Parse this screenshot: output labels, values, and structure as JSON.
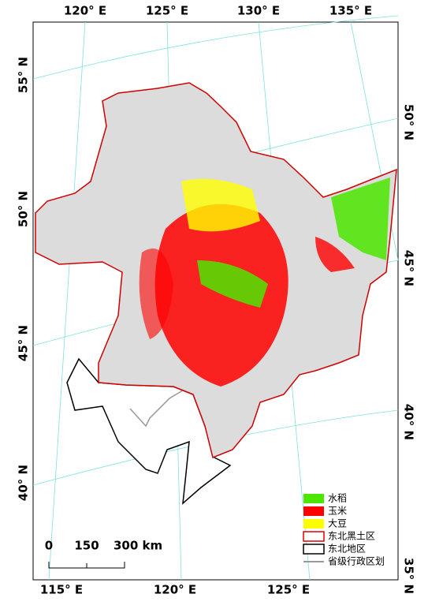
{
  "top_labels": [
    "120° E",
    "125° E",
    "130° E",
    "135° E"
  ],
  "bottom_labels": [
    "115° E",
    "120° E",
    "125° E"
  ],
  "left_labels": [
    "55° N",
    "50° N",
    "45° N",
    "40° N"
  ],
  "right_labels": [
    "50° N",
    "45° N",
    "40° N",
    "35° N"
  ],
  "legend": {
    "items": [
      {
        "label": "水稻",
        "color": "#4ce600",
        "kind": "fill"
      },
      {
        "label": "玉米",
        "color": "#ff0000",
        "kind": "fill"
      },
      {
        "label": "大豆",
        "color": "#ffff00",
        "kind": "fill"
      },
      {
        "label": "东北黑土区",
        "color": "#e00000",
        "kind": "outline"
      },
      {
        "label": "东北地区",
        "color": "#000000",
        "kind": "outline"
      },
      {
        "label": "省级行政区划",
        "color": "#999999",
        "kind": "line"
      }
    ]
  },
  "scale_bar": {
    "labels": [
      "0",
      "150",
      "300 km"
    ]
  }
}
